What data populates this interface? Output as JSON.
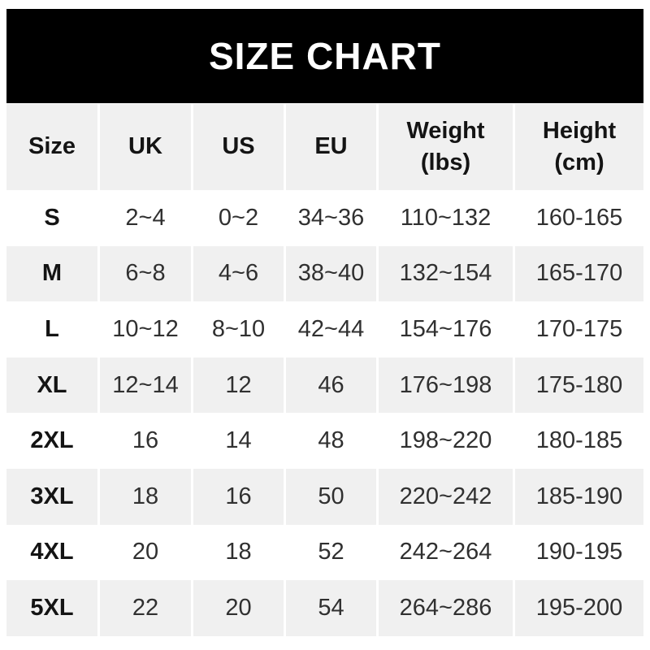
{
  "title_banner": {
    "text": "SIZE CHART"
  },
  "colors": {
    "banner_bg": "#000000",
    "banner_text": "#ffffff",
    "alt_row_bg": "#f0f0f0",
    "row_bg": "#ffffff",
    "label_text": "#141414",
    "value_text": "#303030"
  },
  "chart_data": {
    "type": "table",
    "title": "SIZE CHART",
    "columns": [
      "Size",
      "UK",
      "US",
      "EU",
      "Weight (lbs)",
      "Height (cm)"
    ],
    "columns_display": [
      "Size",
      "UK",
      "US",
      "EU",
      "Weight\n(lbs)",
      "Height\n(cm)"
    ],
    "rows": [
      [
        "S",
        "2~4",
        "0~2",
        "34~36",
        "110~132",
        "160-165"
      ],
      [
        "M",
        "6~8",
        "4~6",
        "38~40",
        "132~154",
        "165-170"
      ],
      [
        "L",
        "10~12",
        "8~10",
        "42~44",
        "154~176",
        "170-175"
      ],
      [
        "XL",
        "12~14",
        "12",
        "46",
        "176~198",
        "175-180"
      ],
      [
        "2XL",
        "16",
        "14",
        "48",
        "198~220",
        "180-185"
      ],
      [
        "3XL",
        "18",
        "16",
        "50",
        "220~242",
        "185-190"
      ],
      [
        "4XL",
        "20",
        "18",
        "52",
        "242~264",
        "190-195"
      ],
      [
        "5XL",
        "22",
        "20",
        "54",
        "264~286",
        "195-200"
      ]
    ]
  }
}
